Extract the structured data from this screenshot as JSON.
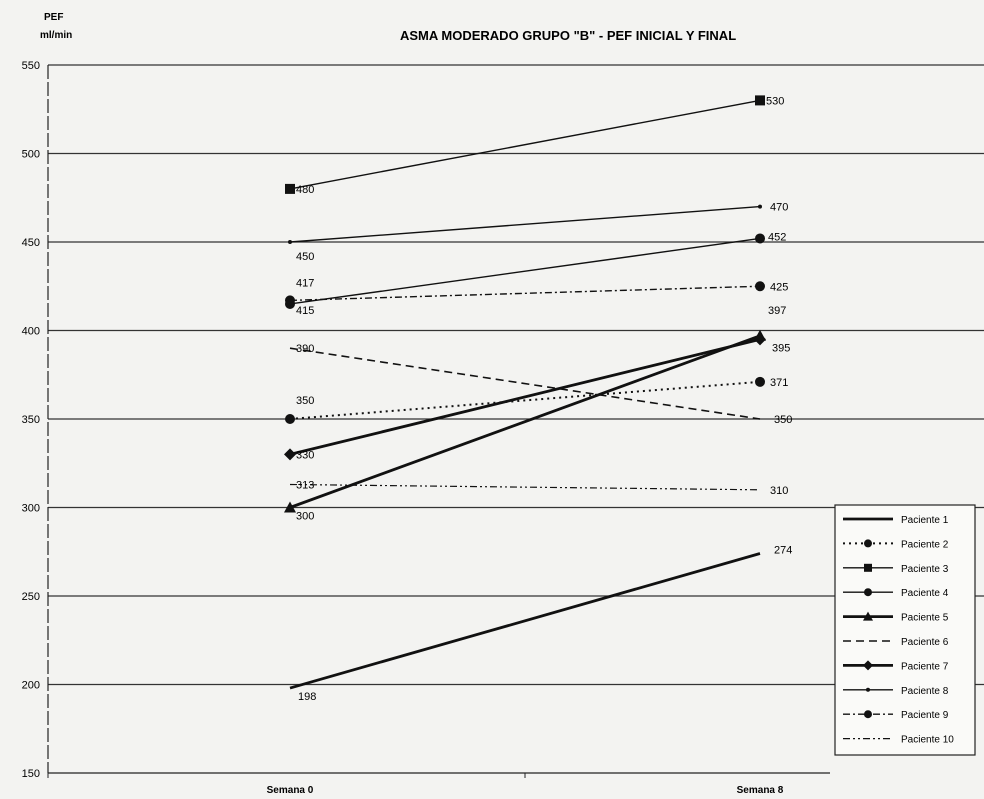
{
  "chart_data": {
    "type": "line",
    "title": "ASMA MODERADO GRUPO \"B\" - PEF INICIAL Y FINAL",
    "ylabel": "PEF",
    "yunit": "ml/min",
    "categories": [
      "Semana 0",
      "Semana 8"
    ],
    "ylim": [
      150,
      550
    ],
    "yticks": [
      "150",
      "200",
      "250",
      "300",
      "350",
      "400",
      "450",
      "500",
      "550"
    ],
    "grid": true,
    "legend_position": "bottom-right",
    "series": [
      {
        "name": "Paciente 1",
        "values": [
          198,
          274
        ],
        "style": "solid-thick",
        "marker": "none"
      },
      {
        "name": "Paciente 2",
        "values": [
          350,
          371
        ],
        "style": "dotted",
        "marker": "circle"
      },
      {
        "name": "Paciente 3",
        "values": [
          480,
          530
        ],
        "style": "solid",
        "marker": "square"
      },
      {
        "name": "Paciente 4",
        "values": [
          415,
          452
        ],
        "style": "solid",
        "marker": "circle"
      },
      {
        "name": "Paciente 5",
        "values": [
          300,
          397
        ],
        "style": "solid-thick",
        "marker": "triangle"
      },
      {
        "name": "Paciente 6",
        "values": [
          390,
          350
        ],
        "style": "dashed",
        "marker": "none"
      },
      {
        "name": "Paciente 7",
        "values": [
          330,
          395
        ],
        "style": "solid-thick",
        "marker": "diamond"
      },
      {
        "name": "Paciente 8",
        "values": [
          450,
          470
        ],
        "style": "solid",
        "marker": "small-dot"
      },
      {
        "name": "Paciente 9",
        "values": [
          417,
          425
        ],
        "style": "dash-dot",
        "marker": "circle"
      },
      {
        "name": "Paciente 10",
        "values": [
          313,
          310
        ],
        "style": "dash-dot-dot",
        "marker": "none"
      }
    ],
    "data_labels": [
      {
        "series": "Paciente 3",
        "point": 0,
        "text": "480"
      },
      {
        "series": "Paciente 3",
        "point": 1,
        "text": "530"
      },
      {
        "series": "Paciente 8",
        "point": 0,
        "text": "450"
      },
      {
        "series": "Paciente 8",
        "point": 1,
        "text": "470"
      },
      {
        "series": "Paciente 4",
        "point": 1,
        "text": "452"
      },
      {
        "series": "Paciente 9",
        "point": 0,
        "text": "417"
      },
      {
        "series": "Paciente 4",
        "point": 0,
        "text": "415"
      },
      {
        "series": "Paciente 9",
        "point": 1,
        "text": "425"
      },
      {
        "series": "Paciente 5",
        "point": 1,
        "text": "397"
      },
      {
        "series": "Paciente 7",
        "point": 1,
        "text": "395"
      },
      {
        "series": "Paciente 6",
        "point": 0,
        "text": "390"
      },
      {
        "series": "Paciente 2",
        "point": 1,
        "text": "371"
      },
      {
        "series": "Paciente 2",
        "point": 0,
        "text": "350"
      },
      {
        "series": "Paciente 6",
        "point": 1,
        "text": "350"
      },
      {
        "series": "Paciente 7",
        "point": 0,
        "text": "330"
      },
      {
        "series": "Paciente 10",
        "point": 0,
        "text": "313"
      },
      {
        "series": "Paciente 10",
        "point": 1,
        "text": "310"
      },
      {
        "series": "Paciente 5",
        "point": 0,
        "text": "300"
      },
      {
        "series": "Paciente 1",
        "point": 1,
        "text": "274"
      },
      {
        "series": "Paciente 1",
        "point": 0,
        "text": "198"
      }
    ]
  }
}
